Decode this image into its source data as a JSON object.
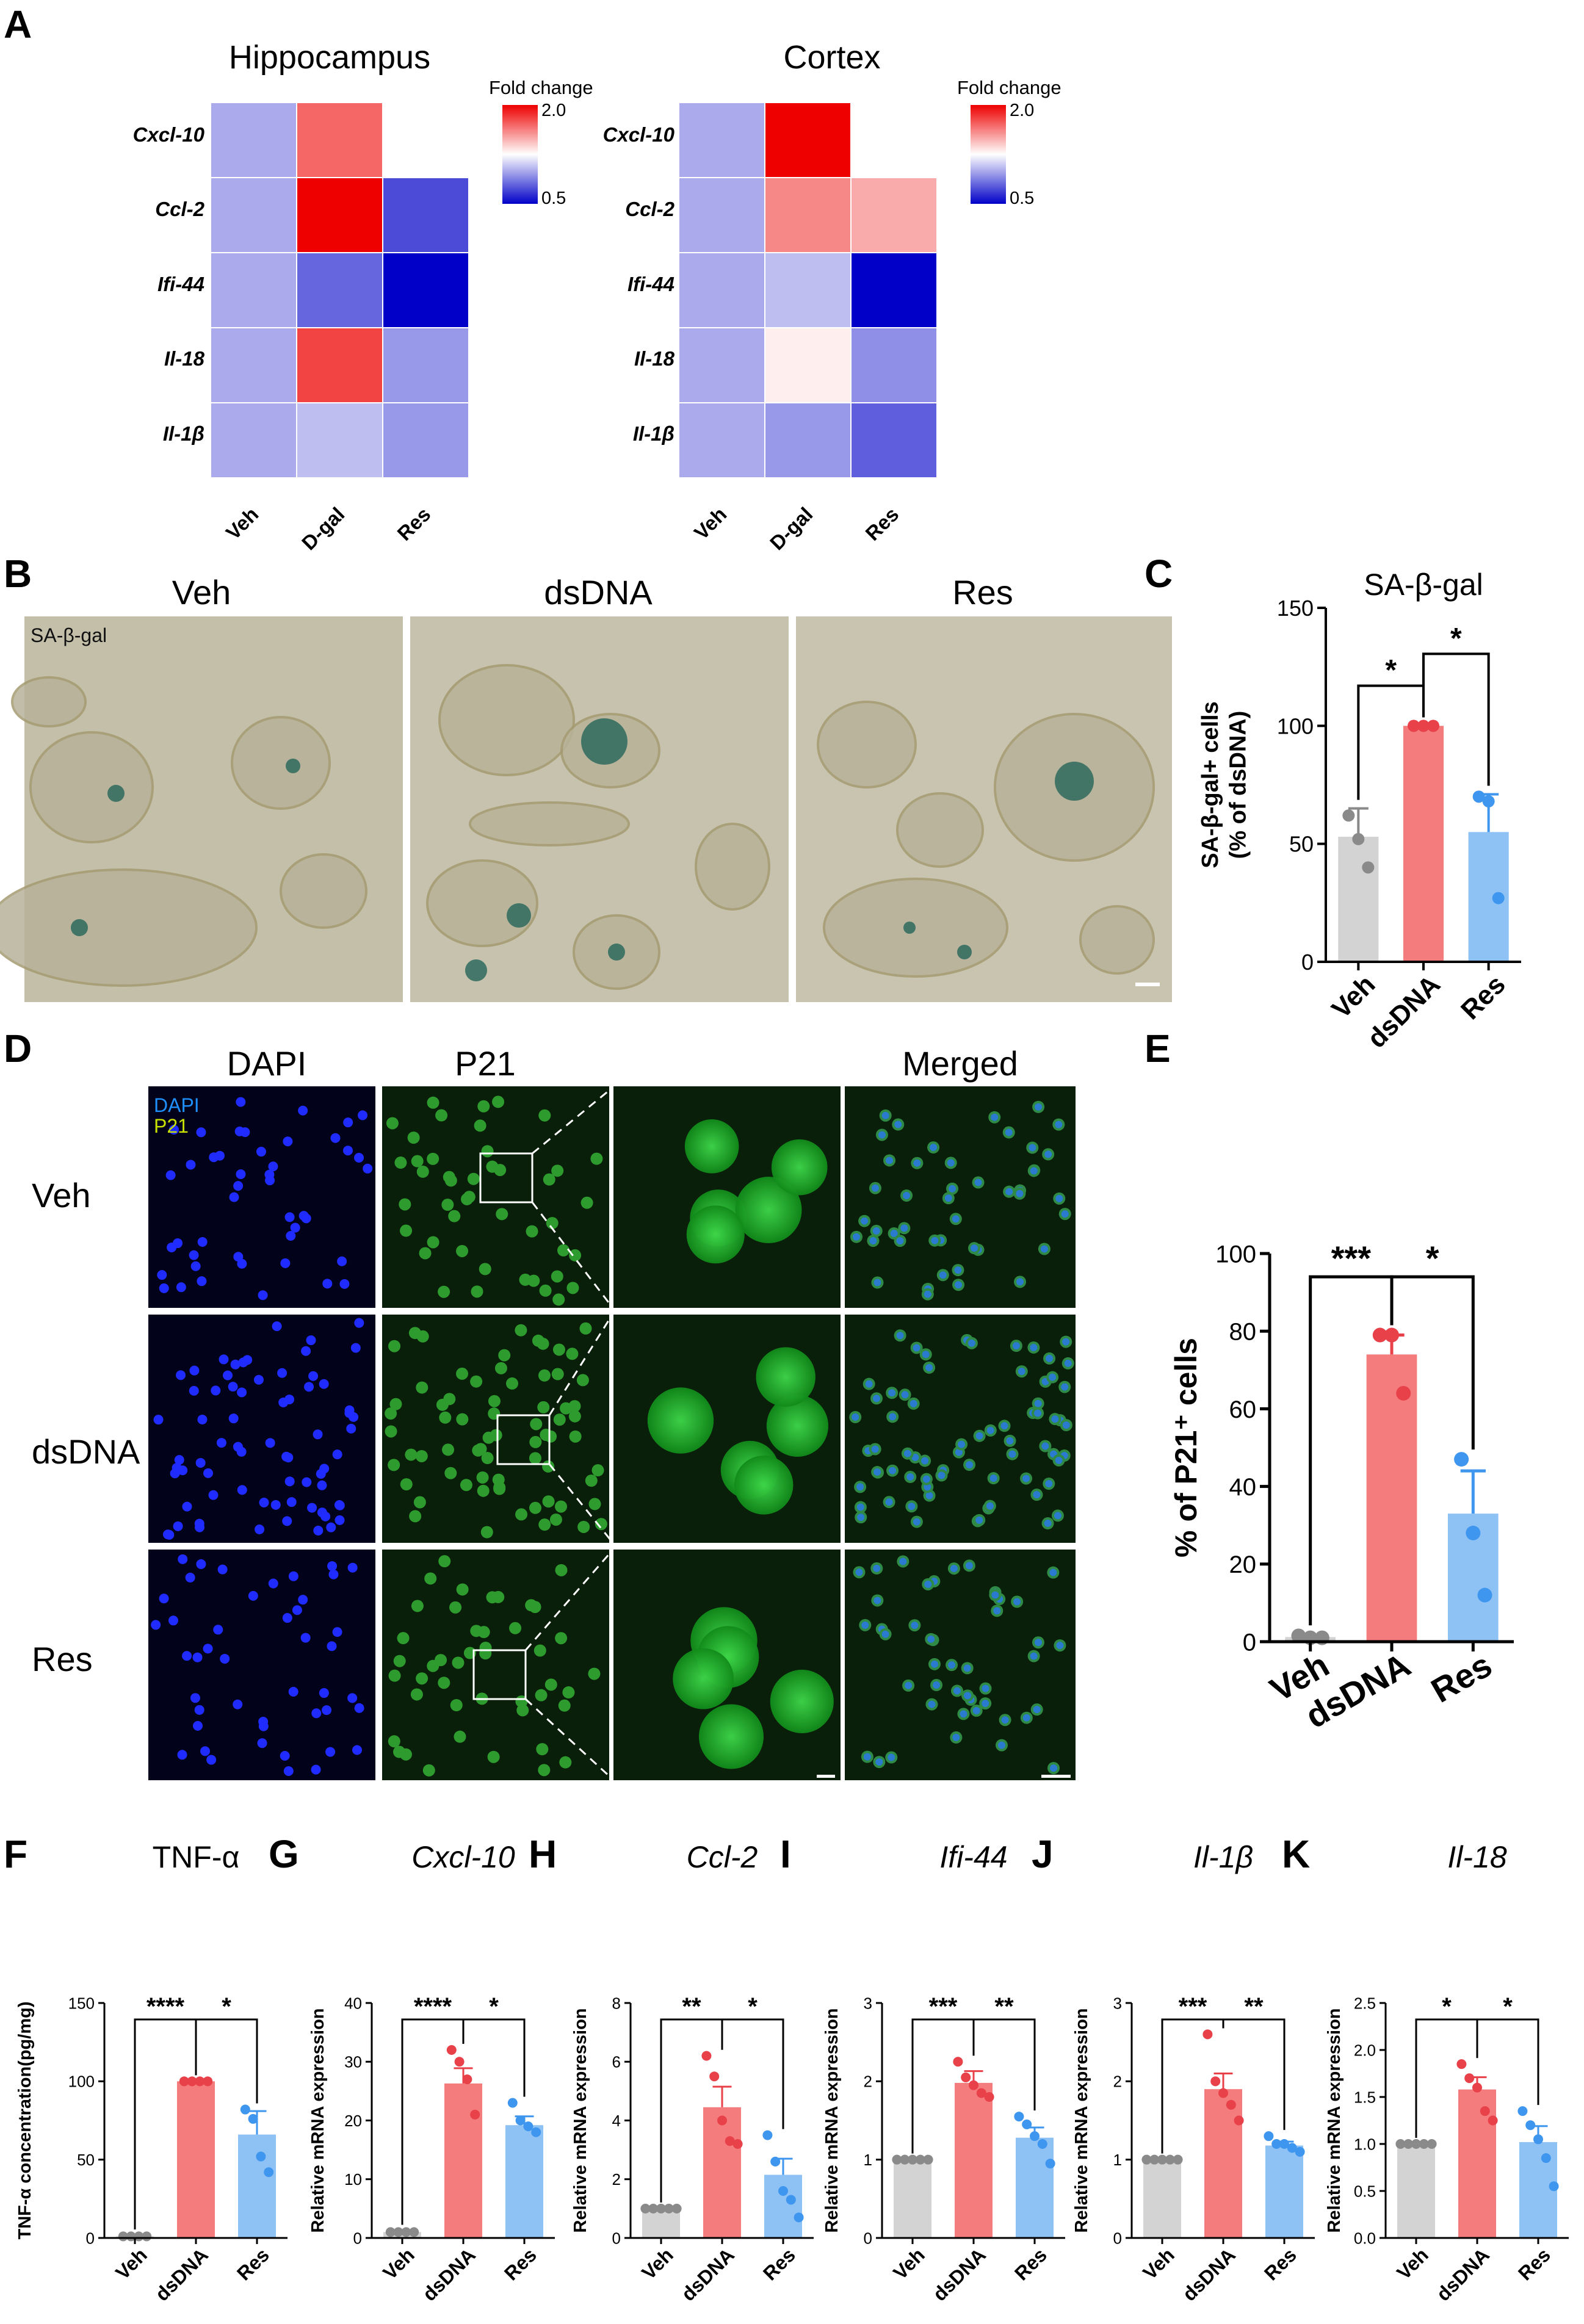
{
  "panels": {
    "A": {
      "label": "A",
      "heatmaps": [
        {
          "title": "Hippocampus",
          "rows": [
            "Cxcl-10",
            "Ccl-2",
            "Ifi-44",
            "Il-18",
            "Il-1β"
          ],
          "columns": [
            "Veh",
            "D-gal",
            "Res"
          ],
          "colorbar": {
            "title": "Fold change",
            "max_label": "2.0",
            "min_label": "0.5"
          }
        },
        {
          "title": "Cortex",
          "rows": [
            "Cxcl-10",
            "Ccl-2",
            "Ifi-44",
            "Il-18",
            "Il-1β"
          ],
          "columns": [
            "Veh",
            "D-gal",
            "Res"
          ],
          "colorbar": {
            "title": "Fold change",
            "max_label": "2.0",
            "min_label": "0.5"
          }
        }
      ]
    },
    "B": {
      "label": "B",
      "columns": [
        "Veh",
        "dsDNA",
        "Res"
      ],
      "stain_label": "SA-β-gal"
    },
    "D": {
      "label": "D",
      "col_titles": [
        "DAPI",
        "P21",
        "",
        "Merged"
      ],
      "rows": [
        "Veh",
        "dsDNA",
        "Res"
      ],
      "legend": [
        "DAPI",
        "P21"
      ]
    },
    "C": {
      "label": "C"
    },
    "E": {
      "label": "E"
    },
    "F": {
      "label": "F"
    },
    "G": {
      "label": "G"
    },
    "H": {
      "label": "H"
    },
    "I": {
      "label": "I"
    },
    "J": {
      "label": "J"
    },
    "K": {
      "label": "K"
    }
  },
  "chart_data": [
    {
      "id": "A-hippocampus",
      "type": "heatmap",
      "title": "Hippocampus",
      "x": [
        "Veh",
        "D-gal",
        "Res"
      ],
      "y": [
        "Cxcl-10",
        "Ccl-2",
        "Ifi-44",
        "Il-18",
        "Il-1β"
      ],
      "values": [
        [
          1.0,
          1.7,
          1.25
        ],
        [
          1.0,
          2.0,
          0.72
        ],
        [
          1.0,
          0.8,
          0.5
        ],
        [
          1.0,
          1.8,
          0.95
        ],
        [
          1.0,
          1.06,
          0.95
        ]
      ],
      "scale": {
        "min": 0.5,
        "max": 2.0,
        "title": "Fold change"
      }
    },
    {
      "id": "A-cortex",
      "type": "heatmap",
      "title": "Cortex",
      "x": [
        "Veh",
        "D-gal",
        "Res"
      ],
      "y": [
        "Cxcl-10",
        "Ccl-2",
        "Ifi-44",
        "Il-18",
        "Il-1β"
      ],
      "values": [
        [
          1.0,
          2.0,
          1.25
        ],
        [
          1.0,
          1.6,
          1.5
        ],
        [
          1.0,
          1.06,
          0.5
        ],
        [
          1.0,
          1.3,
          0.92
        ],
        [
          1.0,
          0.95,
          0.78
        ]
      ],
      "scale": {
        "min": 0.5,
        "max": 2.0,
        "title": "Fold change"
      }
    },
    {
      "id": "C",
      "type": "bar",
      "title": "SA-β-gal",
      "title_italic": false,
      "categories": [
        "Veh",
        "dsDNA",
        "Res"
      ],
      "values": [
        53,
        100,
        55
      ],
      "errors": [
        12,
        0,
        16
      ],
      "points": [
        [
          62,
          52,
          40
        ],
        [
          100,
          100,
          100
        ],
        [
          70,
          68,
          27
        ]
      ],
      "ylabel": "SA-β-gal+ cells\n(% of dsDNA)",
      "ylim": [
        0,
        150
      ],
      "yticks": [
        0,
        50,
        100,
        150
      ],
      "sig": [
        {
          "from": 0,
          "to": 1,
          "label": "*"
        },
        {
          "from": 1,
          "to": 2,
          "label": "*"
        }
      ],
      "colors": [
        "#d3d3d3",
        "#f47c7c",
        "#8ec2f5"
      ]
    },
    {
      "id": "E",
      "type": "bar",
      "title": "",
      "categories": [
        "Veh",
        "dsDNA",
        "Res"
      ],
      "values": [
        1.2,
        74,
        33
      ],
      "errors": [
        0.5,
        5,
        11
      ],
      "points": [
        [
          1.5,
          1,
          1
        ],
        [
          79,
          79,
          64
        ],
        [
          47,
          28,
          12
        ]
      ],
      "ylabel": "% of P21⁺ cells",
      "ylim": [
        0,
        100
      ],
      "yticks": [
        0,
        20,
        40,
        60,
        80,
        100
      ],
      "sig": [
        {
          "from": 0,
          "to": 1,
          "label": "***"
        },
        {
          "from": 1,
          "to": 2,
          "label": "*"
        }
      ],
      "colors": [
        "#d3d3d3",
        "#f47c7c",
        "#8ec2f5"
      ]
    },
    {
      "id": "F",
      "type": "bar",
      "title": "TNF-α",
      "title_italic": false,
      "categories": [
        "Veh",
        "dsDNA",
        "Res"
      ],
      "values": [
        1,
        100,
        66
      ],
      "errors": [
        0.5,
        0,
        15
      ],
      "points": [
        [
          1,
          1,
          1,
          1
        ],
        [
          100,
          100,
          100,
          100
        ],
        [
          82,
          76,
          52,
          42
        ]
      ],
      "ylabel": "TNF-α concentration(pg/mg)",
      "ylim": [
        0,
        150
      ],
      "yticks": [
        0,
        50,
        100,
        150
      ],
      "sig": [
        {
          "from": 0,
          "to": 1,
          "label": "****"
        },
        {
          "from": 1,
          "to": 2,
          "label": "*"
        }
      ],
      "colors": [
        "#d3d3d3",
        "#f47c7c",
        "#8ec2f5"
      ]
    },
    {
      "id": "G",
      "type": "bar",
      "title": "Cxcl-10",
      "title_italic": true,
      "categories": [
        "Veh",
        "dsDNA",
        "Res"
      ],
      "values": [
        1,
        26.3,
        19.2
      ],
      "errors": [
        0.2,
        2.6,
        1.5
      ],
      "points": [
        [
          1,
          1,
          1,
          1
        ],
        [
          32,
          30,
          27,
          21
        ],
        [
          23,
          20,
          19,
          18
        ]
      ],
      "ylabel": "Relative mRNA expression",
      "ylim": [
        0,
        40
      ],
      "yticks": [
        0,
        10,
        20,
        30,
        40
      ],
      "sig": [
        {
          "from": 0,
          "to": 1,
          "label": "****"
        },
        {
          "from": 1,
          "to": 2,
          "label": "*"
        }
      ],
      "colors": [
        "#d3d3d3",
        "#f47c7c",
        "#8ec2f5"
      ]
    },
    {
      "id": "H",
      "type": "bar",
      "title": "Ccl-2",
      "title_italic": true,
      "categories": [
        "Veh",
        "dsDNA",
        "Res"
      ],
      "values": [
        1,
        4.45,
        2.15
      ],
      "errors": [
        0,
        0.7,
        0.55
      ],
      "points": [
        [
          1,
          1,
          1,
          1,
          1
        ],
        [
          6.2,
          5.5,
          4,
          3.3,
          3.2
        ],
        [
          3.5,
          2.6,
          1.6,
          1.3,
          0.7
        ]
      ],
      "ylabel": "Relative mRNA expression",
      "ylim": [
        0,
        8
      ],
      "yticks": [
        0,
        2,
        4,
        6,
        8
      ],
      "sig": [
        {
          "from": 0,
          "to": 1,
          "label": "**"
        },
        {
          "from": 1,
          "to": 2,
          "label": "*"
        }
      ],
      "colors": [
        "#d3d3d3",
        "#f47c7c",
        "#8ec2f5"
      ]
    },
    {
      "id": "I",
      "type": "bar",
      "title": "Ifi-44",
      "title_italic": true,
      "categories": [
        "Veh",
        "dsDNA",
        "Res"
      ],
      "values": [
        1,
        1.98,
        1.28
      ],
      "errors": [
        0,
        0.15,
        0.13
      ],
      "points": [
        [
          1,
          1,
          1,
          1,
          1
        ],
        [
          2.25,
          2.05,
          1.95,
          1.85,
          1.8
        ],
        [
          1.55,
          1.45,
          1.3,
          1.2,
          0.95
        ]
      ],
      "ylabel": "Relative mRNA expression",
      "ylim": [
        0,
        3
      ],
      "yticks": [
        0,
        1,
        2,
        3
      ],
      "sig": [
        {
          "from": 0,
          "to": 1,
          "label": "***"
        },
        {
          "from": 1,
          "to": 2,
          "label": "**"
        }
      ],
      "colors": [
        "#d3d3d3",
        "#f47c7c",
        "#8ec2f5"
      ]
    },
    {
      "id": "J",
      "type": "bar",
      "title": "Il-1β",
      "title_italic": true,
      "categories": [
        "Veh",
        "dsDNA",
        "Res"
      ],
      "values": [
        1,
        1.9,
        1.18
      ],
      "errors": [
        0,
        0.2,
        0.05
      ],
      "points": [
        [
          1,
          1,
          1,
          1,
          1
        ],
        [
          2.6,
          2.0,
          1.85,
          1.7,
          1.5
        ],
        [
          1.3,
          1.2,
          1.2,
          1.15,
          1.1
        ]
      ],
      "ylabel": "Relative mRNA expression",
      "ylim": [
        0,
        3
      ],
      "yticks": [
        0,
        1,
        2,
        3
      ],
      "sig": [
        {
          "from": 0,
          "to": 1,
          "label": "***"
        },
        {
          "from": 1,
          "to": 2,
          "label": "**"
        }
      ],
      "colors": [
        "#d3d3d3",
        "#f47c7c",
        "#8ec2f5"
      ]
    },
    {
      "id": "K",
      "type": "bar",
      "title": "Il-18",
      "title_italic": true,
      "categories": [
        "Veh",
        "dsDNA",
        "Res"
      ],
      "values": [
        1,
        1.58,
        1.02
      ],
      "errors": [
        0,
        0.13,
        0.17
      ],
      "points": [
        [
          1,
          1,
          1,
          1,
          1
        ],
        [
          1.85,
          1.7,
          1.6,
          1.35,
          1.25
        ],
        [
          1.35,
          1.2,
          1.05,
          0.85,
          0.55
        ]
      ],
      "ylabel": "Relative mRNA expression",
      "ylim": [
        0,
        2.5
      ],
      "yticks": [
        0,
        0.5,
        1.0,
        1.5,
        2.0,
        2.5
      ],
      "ytick_labels": [
        "0.0",
        "0.5",
        "1.0",
        "1.5",
        "2.0",
        "2.5"
      ],
      "sig": [
        {
          "from": 0,
          "to": 1,
          "label": "*"
        },
        {
          "from": 1,
          "to": 2,
          "label": "*"
        }
      ],
      "colors": [
        "#d3d3d3",
        "#f47c7c",
        "#8ec2f5"
      ]
    }
  ]
}
